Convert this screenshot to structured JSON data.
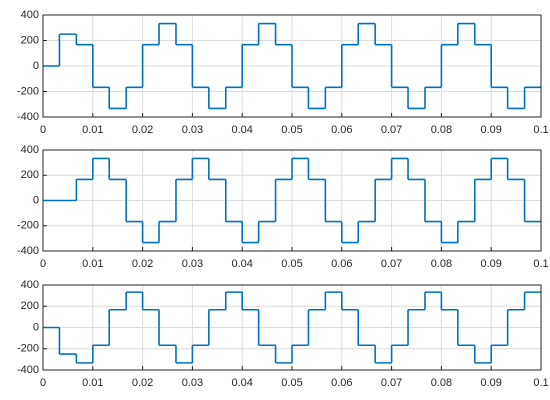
{
  "chart_data": [
    {
      "type": "line",
      "drawstyle": "steps-post",
      "x": [
        0,
        0.0033,
        0.0067,
        0.01,
        0.0133,
        0.0167,
        0.02,
        0.0233,
        0.0267,
        0.03,
        0.0333,
        0.0367,
        0.04,
        0.0433,
        0.0467,
        0.05,
        0.0533,
        0.0567,
        0.06,
        0.0633,
        0.0667,
        0.07,
        0.0733,
        0.0767,
        0.08,
        0.0833,
        0.0867,
        0.09,
        0.0933,
        0.0967
      ],
      "series": [
        {
          "color": "#0072bd",
          "values": [
            0,
            250,
            167,
            -167,
            -333,
            -167,
            167,
            333,
            167,
            -167,
            -333,
            -167,
            167,
            333,
            167,
            -167,
            -333,
            -167,
            167,
            333,
            167,
            -167,
            -333,
            -167,
            167,
            333,
            167,
            -167,
            -333,
            -167
          ]
        }
      ],
      "xlim": [
        0,
        0.1
      ],
      "xticks": [
        0,
        0.01,
        0.02,
        0.03,
        0.04,
        0.05,
        0.06,
        0.07,
        0.08,
        0.09,
        0.1
      ],
      "ylim": [
        -400,
        400
      ],
      "yticks": [
        -400,
        -200,
        0,
        200,
        400
      ],
      "grid": true
    },
    {
      "type": "line",
      "drawstyle": "steps-post",
      "x": [
        0,
        0.0033,
        0.0067,
        0.01,
        0.0133,
        0.0167,
        0.02,
        0.0233,
        0.0267,
        0.03,
        0.0333,
        0.0367,
        0.04,
        0.0433,
        0.0467,
        0.05,
        0.0533,
        0.0567,
        0.06,
        0.0633,
        0.0667,
        0.07,
        0.0733,
        0.0767,
        0.08,
        0.0833,
        0.0867,
        0.09,
        0.0933,
        0.0967
      ],
      "series": [
        {
          "color": "#0072bd",
          "values": [
            0,
            0,
            167,
            333,
            167,
            -167,
            -333,
            -167,
            167,
            333,
            167,
            -167,
            -333,
            -167,
            167,
            333,
            167,
            -167,
            -333,
            -167,
            167,
            333,
            167,
            -167,
            -333,
            -167,
            167,
            333,
            167,
            -167
          ]
        }
      ],
      "xlim": [
        0,
        0.1
      ],
      "xticks": [
        0,
        0.01,
        0.02,
        0.03,
        0.04,
        0.05,
        0.06,
        0.07,
        0.08,
        0.09,
        0.1
      ],
      "ylim": [
        -400,
        400
      ],
      "yticks": [
        -400,
        -200,
        0,
        200,
        400
      ],
      "grid": true
    },
    {
      "type": "line",
      "drawstyle": "steps-post",
      "x": [
        0,
        0.0033,
        0.0067,
        0.01,
        0.0133,
        0.0167,
        0.02,
        0.0233,
        0.0267,
        0.03,
        0.0333,
        0.0367,
        0.04,
        0.0433,
        0.0467,
        0.05,
        0.0533,
        0.0567,
        0.06,
        0.0633,
        0.0667,
        0.07,
        0.0733,
        0.0767,
        0.08,
        0.0833,
        0.0867,
        0.09,
        0.0933,
        0.0967
      ],
      "series": [
        {
          "color": "#0072bd",
          "values": [
            0,
            -250,
            -333,
            -167,
            167,
            333,
            167,
            -167,
            -333,
            -167,
            167,
            333,
            167,
            -167,
            -333,
            -167,
            167,
            333,
            167,
            -167,
            -333,
            -167,
            167,
            333,
            167,
            -167,
            -333,
            -167,
            167,
            333
          ]
        }
      ],
      "xlim": [
        0,
        0.1
      ],
      "xticks": [
        0,
        0.01,
        0.02,
        0.03,
        0.04,
        0.05,
        0.06,
        0.07,
        0.08,
        0.09,
        0.1
      ],
      "ylim": [
        -400,
        400
      ],
      "yticks": [
        -400,
        -200,
        0,
        200,
        400
      ],
      "grid": true
    }
  ]
}
